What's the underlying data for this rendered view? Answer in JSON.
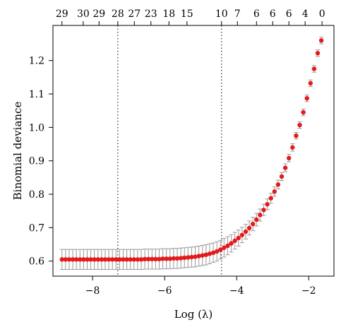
{
  "chart_data": {
    "type": "scatter",
    "xlabel": "Log (λ)",
    "ylabel": "Binomial deviance",
    "xlim": [
      -9.1,
      -1.3
    ],
    "ylim": [
      0.555,
      1.305
    ],
    "x_ticks": [
      -8,
      -6,
      -4,
      -2
    ],
    "x_tick_labels": [
      "−8",
      "−6",
      "−4",
      "−2"
    ],
    "y_ticks": [
      0.6,
      0.7,
      0.8,
      0.9,
      1.0,
      1.1,
      1.2
    ],
    "y_tick_labels": [
      "0.6",
      "0.7",
      "0.8",
      "0.9",
      "1.0",
      "1.1",
      "1.2"
    ],
    "top_axis_ticks_x": [
      -8.85,
      -8.26,
      -7.82,
      -7.3,
      -6.84,
      -6.38,
      -5.88,
      -5.38,
      -4.42,
      -3.98,
      -3.45,
      -3.0,
      -2.55,
      -2.1,
      -1.63
    ],
    "top_axis_labels": [
      "29",
      "30",
      "29",
      "28",
      "27",
      "23",
      "18",
      "15",
      "10",
      "7",
      "6",
      "6",
      "6",
      "4",
      "0"
    ],
    "vlines": [
      -7.3,
      -4.42
    ],
    "grid": false,
    "series": [
      {
        "x": [
          -8.85,
          -8.75,
          -8.65,
          -8.55,
          -8.45,
          -8.35,
          -8.25,
          -8.15,
          -8.05,
          -7.95,
          -7.85,
          -7.75,
          -7.65,
          -7.55,
          -7.45,
          -7.35,
          -7.25,
          -7.15,
          -7.05,
          -6.95,
          -6.85,
          -6.75,
          -6.65,
          -6.55,
          -6.45,
          -6.35,
          -6.25,
          -6.15,
          -6.05,
          -5.95,
          -5.85,
          -5.75,
          -5.65,
          -5.55,
          -5.45,
          -5.35,
          -5.25,
          -5.15,
          -5.05,
          -4.95,
          -4.85,
          -4.75,
          -4.65,
          -4.55,
          -4.45,
          -4.35,
          -4.25,
          -4.15,
          -4.05,
          -3.95,
          -3.85,
          -3.75,
          -3.65,
          -3.55,
          -3.45,
          -3.35,
          -3.25,
          -3.15,
          -3.05,
          -2.95,
          -2.85,
          -2.75,
          -2.65,
          -2.55,
          -2.45,
          -2.35,
          -2.25,
          -2.15,
          -2.05,
          -1.95,
          -1.85,
          -1.75,
          -1.65
        ],
        "y": [
          0.605,
          0.605,
          0.605,
          0.605,
          0.605,
          0.605,
          0.605,
          0.605,
          0.605,
          0.605,
          0.605,
          0.605,
          0.605,
          0.605,
          0.605,
          0.605,
          0.605,
          0.605,
          0.605,
          0.605,
          0.605,
          0.605,
          0.605,
          0.606,
          0.606,
          0.606,
          0.606,
          0.606,
          0.607,
          0.607,
          0.607,
          0.608,
          0.608,
          0.609,
          0.61,
          0.611,
          0.612,
          0.613,
          0.615,
          0.617,
          0.619,
          0.622,
          0.625,
          0.629,
          0.634,
          0.64,
          0.646,
          0.653,
          0.661,
          0.669,
          0.678,
          0.688,
          0.699,
          0.711,
          0.724,
          0.738,
          0.753,
          0.77,
          0.788,
          0.808,
          0.829,
          0.853,
          0.879,
          0.908,
          0.94,
          0.975,
          1.007,
          1.045,
          1.087,
          1.132,
          1.175,
          1.222,
          1.26
        ],
        "err": [
          0.03,
          0.03,
          0.03,
          0.03,
          0.03,
          0.03,
          0.03,
          0.03,
          0.03,
          0.03,
          0.03,
          0.03,
          0.03,
          0.03,
          0.03,
          0.03,
          0.03,
          0.03,
          0.03,
          0.03,
          0.03,
          0.03,
          0.03,
          0.03,
          0.03,
          0.03,
          0.03,
          0.03,
          0.03,
          0.03,
          0.03,
          0.03,
          0.03,
          0.03,
          0.03,
          0.03,
          0.03,
          0.03,
          0.03,
          0.03,
          0.03,
          0.03,
          0.029,
          0.029,
          0.028,
          0.028,
          0.027,
          0.026,
          0.025,
          0.024,
          0.023,
          0.022,
          0.021,
          0.02,
          0.019,
          0.018,
          0.017,
          0.016,
          0.015,
          0.014,
          0.013,
          0.012,
          0.012,
          0.011,
          0.011,
          0.01,
          0.01,
          0.01,
          0.01,
          0.01,
          0.01,
          0.01,
          0.01
        ]
      }
    ],
    "colors": {
      "point": "#e41a1c",
      "errorbar": "#9a9a9a"
    }
  }
}
